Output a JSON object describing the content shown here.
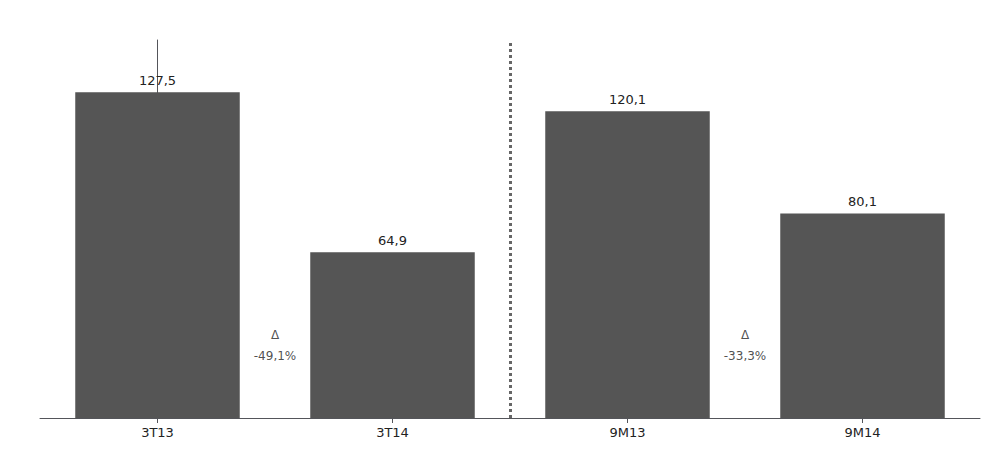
{
  "chart_data": {
    "type": "bar",
    "categories": [
      "3T13",
      "3T14",
      "9M13",
      "9M14"
    ],
    "values": [
      127.5,
      64.9,
      120.1,
      80.1
    ],
    "value_labels": [
      "127,5",
      "64,9",
      "120,1",
      "80,1"
    ],
    "data_labels": true,
    "color": "#555555",
    "ylim": [
      0,
      148
    ],
    "grid": false,
    "tick_labels": "x",
    "annotations": [
      {
        "text": "Δ",
        "between": [
          "3T13",
          "3T14"
        ],
        "y": 28
      },
      {
        "text": "-49,1%",
        "between": [
          "3T13",
          "3T14"
        ],
        "y": 20
      },
      {
        "text": "Δ",
        "between": [
          "9M13",
          "9M14"
        ],
        "y": 28
      },
      {
        "text": "-33,3%",
        "between": [
          "9M13",
          "9M14"
        ],
        "y": 20
      }
    ],
    "dividers": [
      {
        "between": [
          "3T14",
          "9M13"
        ],
        "color": "#666666",
        "line_style": "dotted"
      }
    ]
  }
}
